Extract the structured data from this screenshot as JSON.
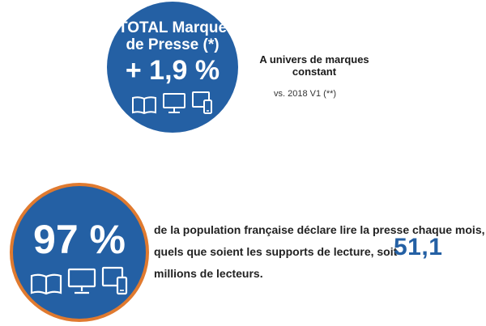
{
  "top_circle": {
    "title_line1": "TOTAL Marque",
    "title_line2": "de Presse (*)",
    "value": "+ 1,9 %",
    "icons": [
      "book-icon",
      "monitor-icon",
      "tablet-phone-icon"
    ],
    "bg_color": "#2460a4"
  },
  "side_note": {
    "heading": "A univers de marques constant",
    "sub": "vs. 2018 V1 (**)"
  },
  "bottom_circle": {
    "value": "97 %",
    "icons": [
      "book-icon",
      "monitor-icon",
      "tablet-phone-icon"
    ],
    "bg_color": "#2460a4",
    "ring_color": "#e07a2f"
  },
  "description": {
    "line1": "de la population française déclare lire la presse chaque mois,",
    "line2": "quels que soient les supports de lecture, soit",
    "line3": "millions de lecteurs.",
    "highlight_number": "51,1",
    "highlight_color": "#2460a4"
  }
}
